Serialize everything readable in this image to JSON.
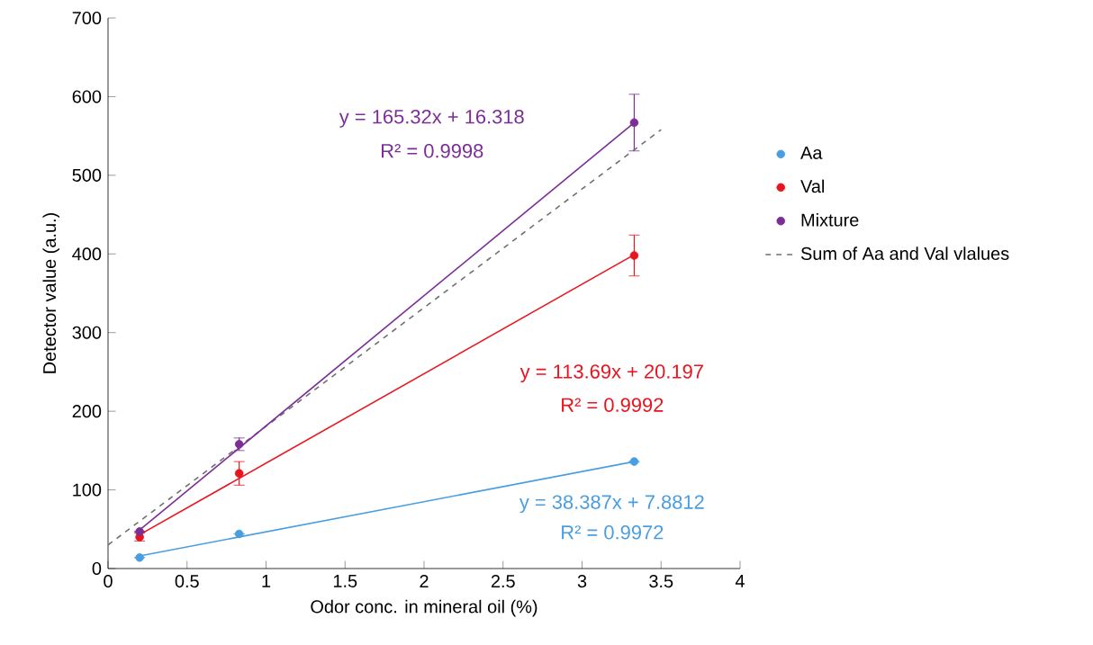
{
  "chart_data": {
    "type": "scatter",
    "xlabel": "Odor conc. in mineral oil (%)",
    "ylabel": "Detector value (a.u.)",
    "xlim": [
      0,
      4
    ],
    "ylim": [
      0,
      700
    ],
    "xticks": [
      0,
      0.5,
      1,
      1.5,
      2,
      2.5,
      3,
      3.5,
      4
    ],
    "yticks": [
      0,
      100,
      200,
      300,
      400,
      500,
      600,
      700
    ],
    "grid": false,
    "legend": "right",
    "marker": "circle",
    "series": [
      {
        "name": "Aa",
        "color": "#4a9ee0",
        "x": [
          0.2,
          0.83,
          3.33
        ],
        "values": [
          14,
          44,
          136
        ],
        "errors": [
          null,
          null,
          null
        ]
      },
      {
        "name": "Val",
        "color": "#e8141e",
        "x": [
          0.2,
          0.83,
          3.33
        ],
        "values": [
          40,
          121,
          398
        ],
        "errors": [
          5,
          15,
          26
        ]
      },
      {
        "name": "Mixture",
        "color": "#7b2e96",
        "x": [
          0.2,
          0.83,
          3.33
        ],
        "values": [
          47,
          158,
          567
        ],
        "errors": [
          null,
          8,
          36
        ]
      },
      {
        "name": "Sum of Aa and Val vlalues",
        "type": "line",
        "line_style": "dashed",
        "marker": "none",
        "color": "#707070",
        "x": [
          0,
          3.5
        ],
        "values": [
          30,
          558
        ]
      },
      {
        "type": "line",
        "marker": "none",
        "color": "#4a9ee0",
        "x": [
          0.2,
          3.33
        ],
        "values": [
          16,
          136
        ]
      },
      {
        "type": "line",
        "marker": "none",
        "color": "#e8141e",
        "x": [
          0.2,
          3.33
        ],
        "values": [
          43,
          399
        ]
      },
      {
        "type": "line",
        "marker": "none",
        "color": "#7b2e96",
        "x": [
          0.2,
          3.33
        ],
        "values": [
          49,
          567
        ]
      }
    ],
    "annotations": [
      "y = 165.32x  + 16.318",
      "R² = 0.9998",
      "y = 113.69x  + 20.197",
      "R² = 0.9992",
      "y = 38.387x  + 7.8812",
      "R² = 0.9972"
    ]
  }
}
